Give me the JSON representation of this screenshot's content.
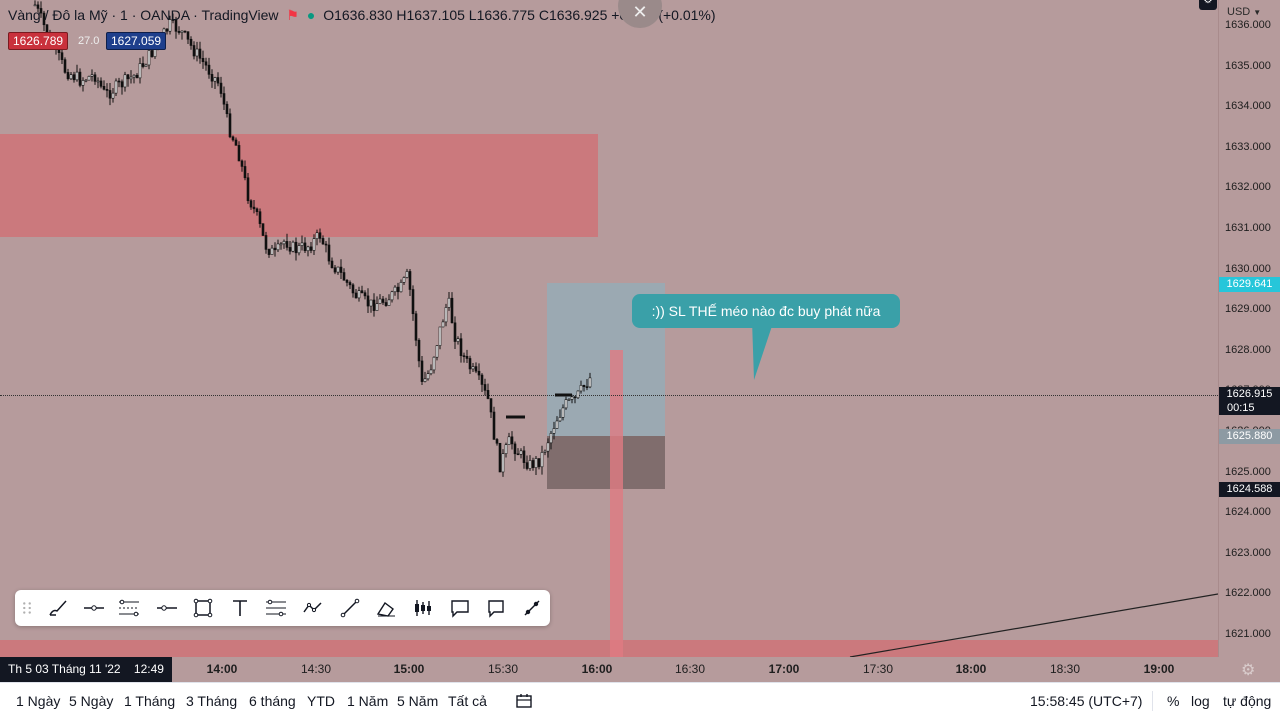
{
  "legend": {
    "symbol": "Vàng / Đô la Mỹ · 1 · OANDA · TradingView",
    "ohlc": "O1636.830  H1637.105  L1636.775  C1636.925  +0.095 (+0.01%)",
    "sell_price": "1626.789",
    "spread": "27.0",
    "buy_price": "1627.059"
  },
  "currency": "USD",
  "price_ticks": [
    "1636.000",
    "1635.000",
    "1634.000",
    "1633.000",
    "1632.000",
    "1631.000",
    "1630.000",
    "1629.000",
    "1628.000",
    "1627.000",
    "1626.000",
    "1625.000",
    "1624.000",
    "1623.000",
    "1622.000",
    "1621.000"
  ],
  "price_markers": {
    "target": "1629.641",
    "current": "1626.915",
    "countdown": "00:15",
    "entry": "1625.880",
    "stop": "1624.588"
  },
  "annotation": ":)) SL THẾ méo nào đc buy phát nữa",
  "time_axis": {
    "cursor_label": "Th 5 03 Tháng 11 '22    12:49",
    "labels": [
      {
        "text": "14:00",
        "bold": true
      },
      {
        "text": "14:30",
        "bold": false
      },
      {
        "text": "15:00",
        "bold": true
      },
      {
        "text": "15:30",
        "bold": false
      },
      {
        "text": "16:00",
        "bold": true
      },
      {
        "text": "16:30",
        "bold": false
      },
      {
        "text": "17:00",
        "bold": true
      },
      {
        "text": "17:30",
        "bold": false
      },
      {
        "text": "18:00",
        "bold": true
      },
      {
        "text": "18:30",
        "bold": false
      },
      {
        "text": "19:00",
        "bold": true
      }
    ]
  },
  "bottom_toolbar": {
    "ranges": [
      "1 Ngày",
      "5 Ngày",
      "1 Tháng",
      "3 Tháng",
      "6 tháng",
      "YTD",
      "1 Năm",
      "5 Năm",
      "Tất cả"
    ],
    "clock": "15:58:45 (UTC+7)",
    "percent": "%",
    "log": "log",
    "auto": "tự động"
  },
  "drawing_tools": [
    "grip-icon",
    "brush-icon",
    "horizontal-line-icon",
    "parallel-channel-icon",
    "horizontal-ray-icon",
    "rectangle-icon",
    "text-icon",
    "fib-retracement-icon",
    "path-icon",
    "trend-line-icon",
    "eraser-icon",
    "candles-icon",
    "callout-icon",
    "balloon-icon",
    "arrow-marker-icon"
  ],
  "colors": {
    "background": "#b69b9c",
    "supply_zone": "#cf7378",
    "target_zone": "#9aaab3",
    "stop_zone": "#7d6a6a",
    "target_label": "#26c6da",
    "entry_label": "#8d9aa3",
    "callout": "#3aa0a8"
  }
}
